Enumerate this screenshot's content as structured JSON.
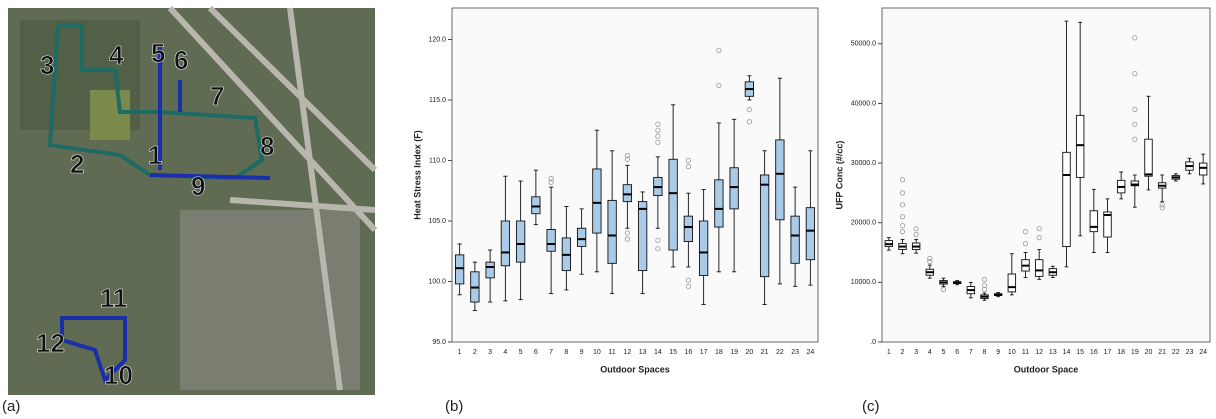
{
  "map": {
    "labels": [
      "1",
      "2",
      "3",
      "4",
      "5",
      "6",
      "7",
      "8",
      "9",
      "10",
      "11",
      "12"
    ],
    "panel": "(a)"
  },
  "chart_data": [
    {
      "type": "box",
      "panel": "(b)",
      "y_label": "Heat Stress Index (F)",
      "x_label": "Outdoor Spaces",
      "color": "#a9cbe8",
      "categories": [
        "1",
        "2",
        "3",
        "4",
        "5",
        "6",
        "7",
        "8",
        "9",
        "10",
        "11",
        "12",
        "13",
        "14",
        "15",
        "16",
        "17",
        "18",
        "19",
        "20",
        "21",
        "22",
        "23",
        "24"
      ],
      "ylim": [
        95,
        122.6
      ],
      "yticks": [
        {
          "value": 95,
          "label": "95.0"
        },
        {
          "value": 100,
          "label": "100.0"
        },
        {
          "value": 105,
          "label": "105.0"
        },
        {
          "value": 110,
          "label": "110.0"
        },
        {
          "value": 115,
          "label": "115.0"
        },
        {
          "value": 120,
          "label": "120.0"
        }
      ],
      "boxes": [
        {
          "low": 98.9,
          "q1": 99.8,
          "median": 101.1,
          "q3": 102.2,
          "high": 103.1,
          "outliers": []
        },
        {
          "low": 97.6,
          "q1": 98.3,
          "median": 99.5,
          "q3": 100.8,
          "high": 101.6,
          "outliers": []
        },
        {
          "low": 98.3,
          "q1": 100.3,
          "median": 101.2,
          "q3": 101.6,
          "high": 102.6,
          "outliers": []
        },
        {
          "low": 98.4,
          "q1": 101.3,
          "median": 102.4,
          "q3": 105.0,
          "high": 108.7,
          "outliers": []
        },
        {
          "low": 98.5,
          "q1": 101.6,
          "median": 103.1,
          "q3": 105.0,
          "high": 108.3,
          "outliers": []
        },
        {
          "low": 104.7,
          "q1": 105.6,
          "median": 106.2,
          "q3": 107.0,
          "high": 109.2,
          "outliers": []
        },
        {
          "low": 99.0,
          "q1": 102.5,
          "median": 103.1,
          "q3": 104.3,
          "high": 107.8,
          "outliers": [
            108.2,
            108.5
          ]
        },
        {
          "low": 99.3,
          "q1": 100.9,
          "median": 102.2,
          "q3": 103.6,
          "high": 106.2,
          "outliers": []
        },
        {
          "low": 100.6,
          "q1": 102.9,
          "median": 103.5,
          "q3": 104.4,
          "high": 106.0,
          "outliers": []
        },
        {
          "low": 100.8,
          "q1": 104.0,
          "median": 106.5,
          "q3": 109.3,
          "high": 112.5,
          "outliers": []
        },
        {
          "low": 99.0,
          "q1": 101.5,
          "median": 103.8,
          "q3": 106.7,
          "high": 110.8,
          "outliers": []
        },
        {
          "low": 104.4,
          "q1": 106.6,
          "median": 107.2,
          "q3": 108.0,
          "high": 109.6,
          "outliers": [
            103.5,
            104.0,
            110.1,
            110.4
          ]
        },
        {
          "low": 99.0,
          "q1": 100.9,
          "median": 106.0,
          "q3": 106.6,
          "high": 107.4,
          "outliers": []
        },
        {
          "low": 104.4,
          "q1": 107.1,
          "median": 107.8,
          "q3": 108.6,
          "high": 110.3,
          "outliers": [
            102.7,
            103.4,
            111.5,
            112.0,
            112.5,
            113.0
          ]
        },
        {
          "low": 101.2,
          "q1": 102.6,
          "median": 107.3,
          "q3": 110.1,
          "high": 114.6,
          "outliers": []
        },
        {
          "low": 101.2,
          "q1": 103.3,
          "median": 104.5,
          "q3": 105.4,
          "high": 107.3,
          "outliers": [
            99.6,
            100.1,
            109.5,
            110.0
          ]
        },
        {
          "low": 98.1,
          "q1": 100.5,
          "median": 102.4,
          "q3": 105.0,
          "high": 107.6,
          "outliers": []
        },
        {
          "low": 100.8,
          "q1": 104.5,
          "median": 106.0,
          "q3": 108.4,
          "high": 113.1,
          "outliers": [
            116.2,
            119.1
          ]
        },
        {
          "low": 100.8,
          "q1": 106.0,
          "median": 107.8,
          "q3": 109.4,
          "high": 113.4,
          "outliers": []
        },
        {
          "low": 115.0,
          "q1": 115.3,
          "median": 115.9,
          "q3": 116.5,
          "high": 117.0,
          "outliers": [
            113.2,
            114.2
          ]
        },
        {
          "low": 98.1,
          "q1": 100.4,
          "median": 108.0,
          "q3": 108.8,
          "high": 110.8,
          "outliers": []
        },
        {
          "low": 99.8,
          "q1": 105.1,
          "median": 108.9,
          "q3": 111.7,
          "high": 116.8,
          "outliers": []
        },
        {
          "low": 99.6,
          "q1": 101.5,
          "median": 103.8,
          "q3": 105.4,
          "high": 107.8,
          "outliers": []
        },
        {
          "low": 99.7,
          "q1": 101.8,
          "median": 104.2,
          "q3": 106.1,
          "high": 110.8,
          "outliers": []
        }
      ]
    },
    {
      "type": "box",
      "panel": "(c)",
      "y_label": "UFP Conc (#/cc)",
      "x_label": "Outdoor Space",
      "color": "#ffffff",
      "categories": [
        "1",
        "2",
        "3",
        "4",
        "5",
        "6",
        "7",
        "8",
        "9",
        "10",
        "11",
        "12",
        "13",
        "14",
        "15",
        "16",
        "17",
        "18",
        "19",
        "20",
        "21",
        "22",
        "23",
        "24"
      ],
      "ylim": [
        0,
        56000
      ],
      "yticks": [
        {
          "value": 0,
          "label": ".0"
        },
        {
          "value": 10000,
          "label": "10000.0"
        },
        {
          "value": 20000,
          "label": "20000.0"
        },
        {
          "value": 30000,
          "label": "30000.0"
        },
        {
          "value": 40000,
          "label": "40000.0"
        },
        {
          "value": 50000,
          "label": "50000.0"
        }
      ],
      "boxes": [
        {
          "low": 15400,
          "q1": 16000,
          "median": 16400,
          "q3": 17000,
          "high": 17500,
          "outliers": []
        },
        {
          "low": 14800,
          "q1": 15500,
          "median": 16000,
          "q3": 16500,
          "high": 17200,
          "outliers": [
            18500,
            19500,
            21000,
            23000,
            25000,
            27200
          ]
        },
        {
          "low": 14900,
          "q1": 15500,
          "median": 16000,
          "q3": 16600,
          "high": 17200,
          "outliers": [
            18000,
            19000
          ]
        },
        {
          "low": 10700,
          "q1": 11200,
          "median": 11700,
          "q3": 12200,
          "high": 12900,
          "outliers": [
            13500,
            14000
          ]
        },
        {
          "low": 9300,
          "q1": 9700,
          "median": 10000,
          "q3": 10300,
          "high": 10700,
          "outliers": [
            8800
          ]
        },
        {
          "low": 9600,
          "q1": 9800,
          "median": 10000,
          "q3": 10100,
          "high": 10300,
          "outliers": []
        },
        {
          "low": 7400,
          "q1": 8100,
          "median": 8700,
          "q3": 9300,
          "high": 10000,
          "outliers": []
        },
        {
          "low": 7000,
          "q1": 7300,
          "median": 7600,
          "q3": 7900,
          "high": 8200,
          "outliers": [
            8800,
            9500,
            10500
          ]
        },
        {
          "low": 7600,
          "q1": 7800,
          "median": 7900,
          "q3": 8100,
          "high": 8300,
          "outliers": []
        },
        {
          "low": 7900,
          "q1": 8400,
          "median": 9200,
          "q3": 11400,
          "high": 14800,
          "outliers": []
        },
        {
          "low": 10800,
          "q1": 11900,
          "median": 12800,
          "q3": 13800,
          "high": 15000,
          "outliers": [
            16500,
            18500
          ]
        },
        {
          "low": 10500,
          "q1": 11000,
          "median": 12000,
          "q3": 13800,
          "high": 15500,
          "outliers": [
            17500,
            19000
          ]
        },
        {
          "low": 10800,
          "q1": 11200,
          "median": 11700,
          "q3": 12300,
          "high": 12700,
          "outliers": []
        },
        {
          "low": 12600,
          "q1": 16000,
          "median": 28000,
          "q3": 31800,
          "high": 53800,
          "outliers": []
        },
        {
          "low": 17800,
          "q1": 27600,
          "median": 33000,
          "q3": 38000,
          "high": 53600,
          "outliers": []
        },
        {
          "low": 15000,
          "q1": 18500,
          "median": 19300,
          "q3": 22000,
          "high": 25600,
          "outliers": []
        },
        {
          "low": 15000,
          "q1": 17600,
          "median": 21300,
          "q3": 21800,
          "high": 24000,
          "outliers": []
        },
        {
          "low": 24000,
          "q1": 25000,
          "median": 26000,
          "q3": 27100,
          "high": 28500,
          "outliers": []
        },
        {
          "low": 22600,
          "q1": 26200,
          "median": 26400,
          "q3": 27000,
          "high": 28000,
          "outliers": [
            34000,
            36500,
            39000,
            45000,
            51000
          ]
        },
        {
          "low": 25500,
          "q1": 27800,
          "median": 28100,
          "q3": 34000,
          "high": 41200,
          "outliers": []
        },
        {
          "low": 23500,
          "q1": 25800,
          "median": 26200,
          "q3": 26700,
          "high": 28000,
          "outliers": [
            22500,
            23000
          ]
        },
        {
          "low": 27000,
          "q1": 27300,
          "median": 27600,
          "q3": 27900,
          "high": 28200,
          "outliers": []
        },
        {
          "low": 28200,
          "q1": 28800,
          "median": 29500,
          "q3": 30200,
          "high": 30800,
          "outliers": []
        },
        {
          "low": 26500,
          "q1": 28000,
          "median": 29200,
          "q3": 30000,
          "high": 31500,
          "outliers": []
        }
      ]
    }
  ]
}
